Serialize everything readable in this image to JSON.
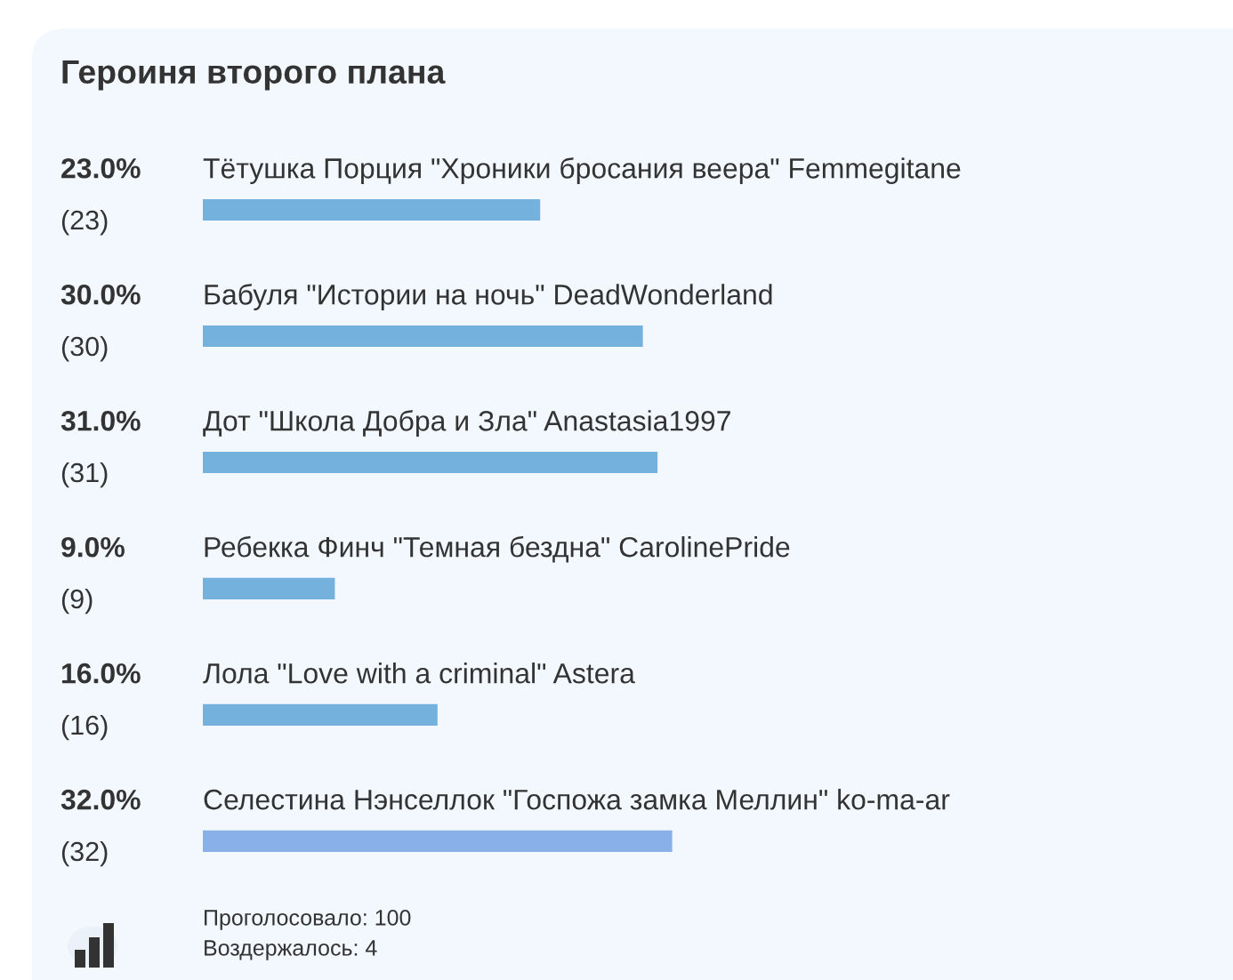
{
  "chart_data": {
    "type": "bar",
    "orientation": "horizontal",
    "title": "Героиня второго плана",
    "categories": [
      "Тётушка Порция \"Хроники бросания веера\" Femmegitane",
      "Бабуля \"Истории на ночь\" DeadWonderland",
      "Дот \"Школа Добра и Зла\" Anastasia1997",
      "Ребекка Финч \"Темная бездна\" CarolinePride",
      "Лола \"Love with a criminal\" Astera",
      "Селестина Нэнселлок \"Госпожа замка Меллин\" ko-ma-ar"
    ],
    "values": [
      23,
      30,
      31,
      9,
      16,
      32
    ],
    "colors": [
      "#75b1dd",
      "#75b1dd",
      "#75b1dd",
      "#75b1dd",
      "#75b1dd",
      "#8ab0ea"
    ],
    "value_labels": [
      "23.0%\n(23)",
      "30.0%\n(30)",
      "31.0%\n(31)",
      "9.0%\n(9)",
      "16.0%\n(16)",
      "32.0%\n(32)"
    ],
    "annotations": [
      "Проголосовало: 100",
      "Воздержалось: 4"
    ]
  }
}
